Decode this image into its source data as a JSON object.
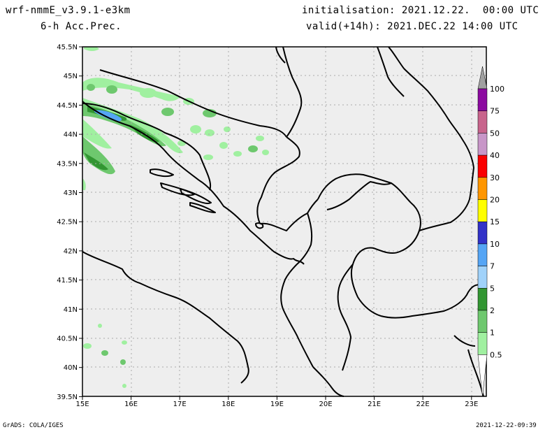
{
  "header": {
    "model": "wrf-nmmE_v3.9.1-e3km",
    "field": "6-h Acc.Prec.",
    "init": "initialisation: 2021.12.22.  00:00 UTC",
    "valid": "valid(+14h): 2021.DEC.22 14:00 UTC"
  },
  "axes": {
    "lat_labels": [
      "45.5N",
      "45N",
      "44.5N",
      "44N",
      "43.5N",
      "43N",
      "42.5N",
      "42N",
      "41.5N",
      "41N",
      "40.5N",
      "40N",
      "39.5N"
    ],
    "lon_labels": [
      "15E",
      "16E",
      "17E",
      "18E",
      "19E",
      "20E",
      "21E",
      "22E",
      "23E"
    ]
  },
  "legend": {
    "labels": [
      "100",
      "75",
      "50",
      "40",
      "30",
      "20",
      "15",
      "10",
      "7",
      "5",
      "2",
      "1",
      "0.5"
    ],
    "colors": [
      "#a0a0a0",
      "#8c0aa0",
      "#c8648c",
      "#c896c8",
      "#fa0000",
      "#ff9600",
      "#ffff00",
      "#3232c8",
      "#55a5f5",
      "#a0d2fa",
      "#329632",
      "#6ec86e",
      "#a0f0a0",
      "#ffffff"
    ]
  },
  "footer": {
    "left": "GrADS: COLA/IGES",
    "right": "2021-12-22-09:39"
  }
}
